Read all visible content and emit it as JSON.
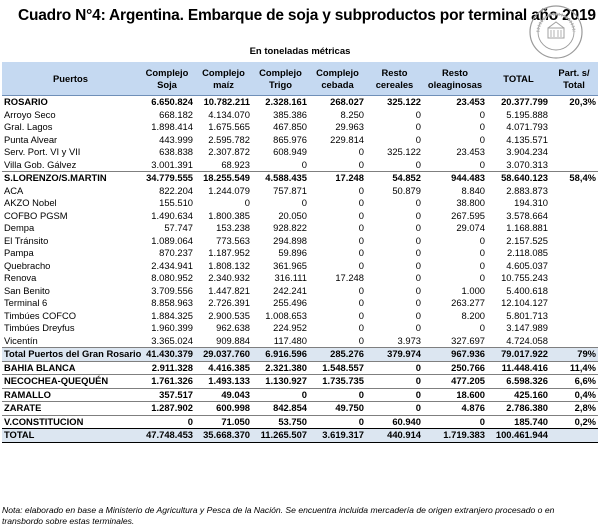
{
  "title": "Cuadro N°4: Argentina. Embarque de soja y subproductos por terminal año 2019",
  "subtitle": "En toneladas métricas",
  "seal": {
    "icon": "bolsa-de-comercio-seal-icon",
    "text": "BOLSA DE COMERCIO DE ROSARIO"
  },
  "headers": [
    "Puertos",
    "Complejo Soja",
    "Complejo maíz",
    "Complejo Trigo",
    "Complejo cebada",
    "Resto cereales",
    "Resto oleaginosas",
    "TOTAL",
    "Part. s/ Total"
  ],
  "rows": [
    {
      "type": "group",
      "cells": [
        "ROSARIO",
        "6.650.824",
        "10.782.211",
        "2.328.161",
        "268.027",
        "325.122",
        "23.453",
        "20.377.799",
        "20,3%"
      ]
    },
    {
      "type": "sub",
      "cells": [
        "Arroyo Seco",
        "668.182",
        "4.134.070",
        "385.386",
        "8.250",
        "0",
        "0",
        "5.195.888",
        ""
      ]
    },
    {
      "type": "sub",
      "cells": [
        "Gral. Lagos",
        "1.898.414",
        "1.675.565",
        "467.850",
        "29.963",
        "0",
        "0",
        "4.071.793",
        ""
      ]
    },
    {
      "type": "sub",
      "cells": [
        "Punta Alvear",
        "443.999",
        "2.595.782",
        "865.976",
        "229.814",
        "0",
        "0",
        "4.135.571",
        ""
      ]
    },
    {
      "type": "sub",
      "cells": [
        "Serv. Port. VI y VII",
        "638.838",
        "2.307.872",
        "608.949",
        "0",
        "325.122",
        "23.453",
        "3.904.234",
        ""
      ]
    },
    {
      "type": "sub",
      "cells": [
        "Villa Gob. Gálvez",
        "3.001.391",
        "68.923",
        "0",
        "0",
        "0",
        "0",
        "3.070.313",
        ""
      ]
    },
    {
      "type": "group",
      "cells": [
        "S.LORENZO/S.MARTIN",
        "34.779.555",
        "18.255.549",
        "4.588.435",
        "17.248",
        "54.852",
        "944.483",
        "58.640.123",
        "58,4%"
      ]
    },
    {
      "type": "sub",
      "cells": [
        "ACA",
        "822.204",
        "1.244.079",
        "757.871",
        "0",
        "50.879",
        "8.840",
        "2.883.873",
        ""
      ]
    },
    {
      "type": "sub",
      "cells": [
        "AKZO Nobel",
        "155.510",
        "0",
        "0",
        "0",
        "0",
        "38.800",
        "194.310",
        ""
      ]
    },
    {
      "type": "sub",
      "cells": [
        "COFBO PGSM",
        "1.490.634",
        "1.800.385",
        "20.050",
        "0",
        "0",
        "267.595",
        "3.578.664",
        ""
      ]
    },
    {
      "type": "sub",
      "cells": [
        "Dempa",
        "57.747",
        "153.238",
        "928.822",
        "0",
        "0",
        "29.074",
        "1.168.881",
        ""
      ]
    },
    {
      "type": "sub",
      "cells": [
        "El Tránsito",
        "1.089.064",
        "773.563",
        "294.898",
        "0",
        "0",
        "0",
        "2.157.525",
        ""
      ]
    },
    {
      "type": "sub",
      "cells": [
        "Pampa",
        "870.237",
        "1.187.952",
        "59.896",
        "0",
        "0",
        "0",
        "2.118.085",
        ""
      ]
    },
    {
      "type": "sub",
      "cells": [
        "Quebracho",
        "2.434.941",
        "1.808.132",
        "361.965",
        "0",
        "0",
        "0",
        "4.605.037",
        ""
      ]
    },
    {
      "type": "sub",
      "cells": [
        "Renova",
        "8.080.952",
        "2.340.932",
        "316.111",
        "17.248",
        "0",
        "0",
        "10.755.243",
        ""
      ]
    },
    {
      "type": "sub",
      "cells": [
        "San Benito",
        "3.709.556",
        "1.447.821",
        "242.241",
        "0",
        "0",
        "1.000",
        "5.400.618",
        ""
      ]
    },
    {
      "type": "sub",
      "cells": [
        "Terminal 6",
        "8.858.963",
        "2.726.391",
        "255.496",
        "0",
        "0",
        "263.277",
        "12.104.127",
        ""
      ]
    },
    {
      "type": "sub",
      "cells": [
        "Timbúes COFCO",
        "1.884.325",
        "2.900.535",
        "1.008.653",
        "0",
        "0",
        "8.200",
        "5.801.713",
        ""
      ]
    },
    {
      "type": "sub",
      "cells": [
        "Timbúes Dreyfus",
        "1.960.399",
        "962.638",
        "224.952",
        "0",
        "0",
        "0",
        "3.147.989",
        ""
      ]
    },
    {
      "type": "sub",
      "cells": [
        "Vicentín",
        "3.365.024",
        "909.884",
        "117.480",
        "0",
        "3.973",
        "327.697",
        "4.724.058",
        ""
      ]
    },
    {
      "type": "sum",
      "cells": [
        "Total Puertos del Gran Rosario",
        "41.430.379",
        "29.037.760",
        "6.916.596",
        "285.276",
        "379.974",
        "967.936",
        "79.017.922",
        "79%"
      ]
    },
    {
      "type": "port",
      "cells": [
        "BAHIA BLANCA",
        "2.911.328",
        "4.416.385",
        "2.321.380",
        "1.548.557",
        "0",
        "250.766",
        "11.448.416",
        "11,4%"
      ]
    },
    {
      "type": "port",
      "cells": [
        "NECOCHEA-QUEQUÉN",
        "1.761.326",
        "1.493.133",
        "1.130.927",
        "1.735.735",
        "0",
        "477.205",
        "6.598.326",
        "6,6%"
      ]
    },
    {
      "type": "port",
      "cells": [
        "RAMALLO",
        "357.517",
        "49.043",
        "0",
        "0",
        "0",
        "18.600",
        "425.160",
        "0,4%"
      ]
    },
    {
      "type": "port",
      "cells": [
        "ZARATE",
        "1.287.902",
        "600.998",
        "842.854",
        "49.750",
        "0",
        "4.876",
        "2.786.380",
        "2,8%"
      ]
    },
    {
      "type": "port",
      "cells": [
        "V.CONSTITUCION",
        "0",
        "71.050",
        "53.750",
        "0",
        "60.940",
        "0",
        "185.740",
        "0,2%"
      ]
    },
    {
      "type": "total",
      "cells": [
        "TOTAL",
        "47.748.453",
        "35.668.370",
        "11.265.507",
        "3.619.317",
        "440.914",
        "1.719.383",
        "100.461.944",
        ""
      ]
    }
  ],
  "note": "Nota: elaborado en base a Ministerio de Agricultura y Pesca de la Nación. Se encuentra incluida mercadería de origen extranjero procesado o en transbordo sobre estas terminales.",
  "colors": {
    "header_bg": "#c5d9f1",
    "total_bg": "#dce6f1"
  }
}
